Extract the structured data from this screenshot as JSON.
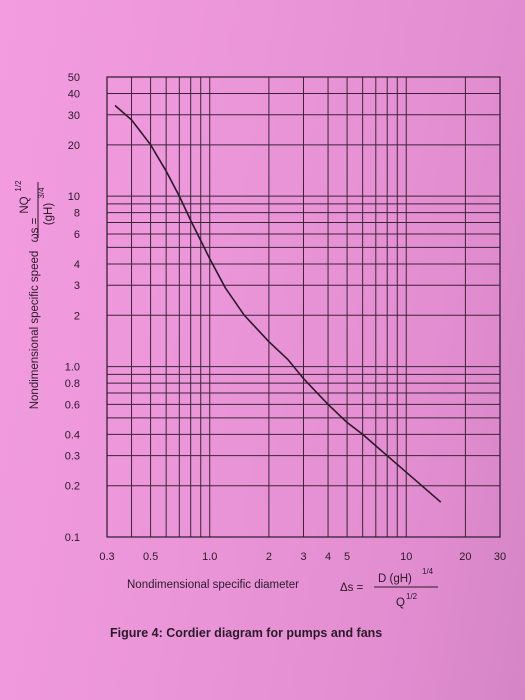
{
  "chart_data": {
    "type": "line",
    "scale": "log-log",
    "grid": true,
    "xlim": [
      0.3,
      30
    ],
    "ylim": [
      0.1,
      50
    ],
    "x_ticks": [
      0.3,
      0.5,
      1.0,
      2,
      3,
      4,
      5,
      10,
      20,
      30
    ],
    "x_tick_labels": [
      "0.3",
      "0.5",
      "1.0",
      "2",
      "3",
      "4",
      "5",
      "10",
      "20",
      "30"
    ],
    "y_ticks": [
      0.1,
      0.2,
      0.3,
      0.4,
      0.6,
      0.8,
      1.0,
      2,
      3,
      4,
      6,
      8,
      10,
      20,
      30,
      40,
      50
    ],
    "y_tick_labels": [
      "0.1",
      "0.2",
      "0.3",
      "0.4",
      "0.6",
      "0.8",
      "1.0",
      "2",
      "3",
      "4",
      "6",
      "8",
      "10",
      "20",
      "30",
      "40",
      "50"
    ],
    "x_grid": [
      0.3,
      0.4,
      0.5,
      0.6,
      0.7,
      0.8,
      0.9,
      1.0,
      2,
      3,
      4,
      5,
      6,
      7,
      8,
      9,
      10,
      20,
      30
    ],
    "y_grid": [
      0.1,
      0.2,
      0.3,
      0.4,
      0.5,
      0.6,
      0.7,
      0.8,
      0.9,
      1.0,
      2,
      3,
      4,
      5,
      6,
      7,
      8,
      9,
      10,
      20,
      30,
      40,
      50
    ],
    "xlabel": "Nondimensional specific diameter",
    "xlabel_formula": {
      "symbol": "Δs =",
      "numerator": "D (gH)",
      "numerator_exp": "1/4",
      "denominator": "Q",
      "denominator_exp": "1/2"
    },
    "ylabel": "Nondimensional specific speed",
    "ylabel_formula": {
      "symbol": "ωs =",
      "numerator": "NQ",
      "numerator_exp": "1/2",
      "denominator": "(gH)",
      "denominator_exp": "3/4"
    },
    "series": [
      {
        "x": [
          0.33,
          0.4,
          0.5,
          0.6,
          0.7,
          0.8,
          1.0,
          1.2,
          1.5,
          2.0,
          2.5,
          3.0,
          4.0,
          5.0,
          6.0,
          8.0,
          10.0,
          12.0,
          15.0
        ],
        "y": [
          34,
          28,
          20,
          14,
          10,
          7.2,
          4.3,
          2.9,
          2.0,
          1.4,
          1.1,
          0.85,
          0.6,
          0.47,
          0.4,
          0.3,
          0.24,
          0.2,
          0.16
        ]
      }
    ]
  },
  "caption": "Figure 4: Cordier diagram for pumps and fans"
}
